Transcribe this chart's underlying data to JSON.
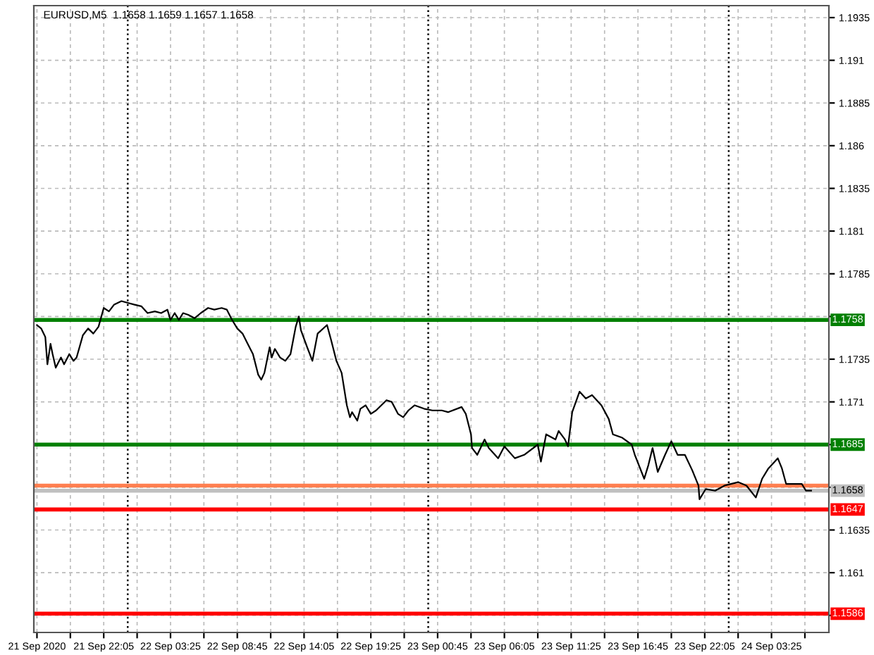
{
  "chart_data": {
    "type": "line",
    "title": "EURUSD,M5  1.1658 1.1659 1.1657 1.1658",
    "x": [
      "2020-09-21T16:45",
      "2020-09-21T17:05",
      "2020-09-21T17:25",
      "2020-09-21T17:35",
      "2020-09-21T17:50",
      "2020-09-21T18:00",
      "2020-09-21T18:15",
      "2020-09-21T18:40",
      "2020-09-21T18:55",
      "2020-09-21T19:20",
      "2020-09-21T19:40",
      "2020-09-21T19:55",
      "2020-09-21T20:25",
      "2020-09-21T20:50",
      "2020-09-21T21:15",
      "2020-09-21T21:40",
      "2020-09-21T22:05",
      "2020-09-21T22:30",
      "2020-09-21T22:55",
      "2020-09-21T23:30",
      "2020-09-22T00:00",
      "2020-09-22T00:30",
      "2020-09-22T01:05",
      "2020-09-22T01:35",
      "2020-09-22T02:10",
      "2020-09-22T02:40",
      "2020-09-22T03:10",
      "2020-09-22T03:25",
      "2020-09-22T03:45",
      "2020-09-22T04:05",
      "2020-09-22T04:25",
      "2020-09-22T04:50",
      "2020-09-22T05:20",
      "2020-09-22T05:50",
      "2020-09-22T06:25",
      "2020-09-22T06:55",
      "2020-09-22T07:30",
      "2020-09-22T07:55",
      "2020-09-22T08:20",
      "2020-09-22T08:45",
      "2020-09-22T09:10",
      "2020-09-22T09:35",
      "2020-09-22T10:00",
      "2020-09-22T10:25",
      "2020-09-22T10:40",
      "2020-09-22T10:55",
      "2020-09-22T11:20",
      "2020-09-22T11:30",
      "2020-09-22T11:45",
      "2020-09-22T12:10",
      "2020-09-22T12:35",
      "2020-09-22T13:00",
      "2020-09-22T13:25",
      "2020-09-22T13:40",
      "2020-09-22T13:50",
      "2020-09-22T14:20",
      "2020-09-22T14:45",
      "2020-09-22T15:10",
      "2020-09-22T15:55",
      "2020-09-22T16:15",
      "2020-09-22T16:40",
      "2020-09-22T17:05",
      "2020-09-22T17:30",
      "2020-09-22T17:45",
      "2020-09-22T17:55",
      "2020-09-22T18:20",
      "2020-09-22T18:35",
      "2020-09-22T19:00",
      "2020-09-22T19:25",
      "2020-09-22T19:50",
      "2020-09-22T20:15",
      "2020-09-22T20:40",
      "2020-09-22T21:05",
      "2020-09-22T21:35",
      "2020-09-22T22:00",
      "2020-09-22T22:25",
      "2020-09-22T22:55",
      "2020-09-22T23:40",
      "2020-09-23T00:20",
      "2020-09-23T01:05",
      "2020-09-23T01:35",
      "2020-09-23T02:40",
      "2020-09-23T03:00",
      "2020-09-23T03:25",
      "2020-09-23T03:30",
      "2020-09-23T03:55",
      "2020-09-23T04:30",
      "2020-09-23T04:50",
      "2020-09-23T05:35",
      "2020-09-23T06:05",
      "2020-09-23T06:55",
      "2020-09-23T07:40",
      "2020-09-23T08:45",
      "2020-09-23T09:00",
      "2020-09-23T09:25",
      "2020-09-23T10:10",
      "2020-09-23T10:25",
      "2020-09-23T10:55",
      "2020-09-23T11:10",
      "2020-09-23T11:30",
      "2020-09-23T12:05",
      "2020-09-23T12:35",
      "2020-09-23T13:05",
      "2020-09-23T13:50",
      "2020-09-23T14:25",
      "2020-09-23T14:45",
      "2020-09-23T15:30",
      "2020-09-23T16:15",
      "2020-09-23T16:30",
      "2020-09-23T17:15",
      "2020-09-23T17:35",
      "2020-09-23T17:55",
      "2020-09-23T18:20",
      "2020-09-23T18:55",
      "2020-09-23T19:25",
      "2020-09-23T19:55",
      "2020-09-23T20:30",
      "2020-09-23T21:05",
      "2020-09-23T21:35",
      "2020-09-23T21:40",
      "2020-09-23T22:10",
      "2020-09-23T22:55",
      "2020-09-23T23:40",
      "2020-09-24T00:45",
      "2020-09-24T01:25",
      "2020-09-24T02:10",
      "2020-09-24T02:40",
      "2020-09-24T03:10",
      "2020-09-24T03:55",
      "2020-09-24T04:15",
      "2020-09-24T04:35",
      "2020-09-24T05:20",
      "2020-09-24T05:50",
      "2020-09-24T06:10",
      "2020-09-24T06:35"
    ],
    "series": [
      {
        "color": "#000000",
        "values": [
          1.1755,
          1.1753,
          1.1748,
          1.1732,
          1.1744,
          1.1738,
          1.173,
          1.1736,
          1.1732,
          1.1738,
          1.1734,
          1.1736,
          1.1749,
          1.1753,
          1.175,
          1.1754,
          1.1765,
          1.1763,
          1.1767,
          1.1769,
          1.1768,
          1.1767,
          1.1766,
          1.1762,
          1.1763,
          1.1762,
          1.1764,
          1.1758,
          1.1762,
          1.1758,
          1.1762,
          1.1761,
          1.1759,
          1.1762,
          1.1765,
          1.1764,
          1.1765,
          1.1764,
          1.1758,
          1.1753,
          1.175,
          1.1744,
          1.1738,
          1.1726,
          1.1723,
          1.1727,
          1.1742,
          1.1736,
          1.1741,
          1.1736,
          1.1734,
          1.1738,
          1.1754,
          1.176,
          1.1752,
          1.1742,
          1.1734,
          1.175,
          1.1755,
          1.1746,
          1.1734,
          1.1727,
          1.1708,
          1.1701,
          1.1704,
          1.1699,
          1.1706,
          1.1708,
          1.1703,
          1.1705,
          1.1708,
          1.1711,
          1.171,
          1.1703,
          1.1701,
          1.1705,
          1.1708,
          1.1706,
          1.1705,
          1.1705,
          1.1704,
          1.1707,
          1.1703,
          1.1691,
          1.1683,
          1.1679,
          1.1688,
          1.1683,
          1.1677,
          1.1684,
          1.1677,
          1.1679,
          1.1685,
          1.1675,
          1.1691,
          1.1688,
          1.1693,
          1.1688,
          1.1684,
          1.1704,
          1.1716,
          1.1712,
          1.1714,
          1.1708,
          1.17,
          1.1691,
          1.1689,
          1.1685,
          1.1679,
          1.1665,
          1.1673,
          1.1683,
          1.1669,
          1.1679,
          1.1687,
          1.1679,
          1.1679,
          1.167,
          1.1661,
          1.1653,
          1.1659,
          1.1658,
          1.1661,
          1.1663,
          1.1661,
          1.1654,
          1.1665,
          1.1671,
          1.1677,
          1.1671,
          1.1662,
          1.1662,
          1.1662,
          1.1658,
          1.1658
        ]
      }
    ],
    "xlim": [
      "2020-09-21T16:30",
      "2020-09-24T08:00"
    ],
    "xticks": [
      {
        "value": "2020-09-21T16:45",
        "label": "21 Sep 2020"
      },
      {
        "value": "2020-09-21T19:25",
        "label": null
      },
      {
        "value": "2020-09-21T22:05",
        "label": "21 Sep 22:05"
      },
      {
        "value": "2020-09-22T00:45",
        "label": null
      },
      {
        "value": "2020-09-22T03:25",
        "label": "22 Sep 03:25"
      },
      {
        "value": "2020-09-22T06:05",
        "label": null
      },
      {
        "value": "2020-09-22T08:45",
        "label": "22 Sep 08:45"
      },
      {
        "value": "2020-09-22T11:25",
        "label": null
      },
      {
        "value": "2020-09-22T14:05",
        "label": "22 Sep 14:05"
      },
      {
        "value": "2020-09-22T16:45",
        "label": null
      },
      {
        "value": "2020-09-22T19:25",
        "label": "22 Sep 19:25"
      },
      {
        "value": "2020-09-22T22:05",
        "label": null
      },
      {
        "value": "2020-09-23T00:45",
        "label": "23 Sep 00:45"
      },
      {
        "value": "2020-09-23T03:25",
        "label": null
      },
      {
        "value": "2020-09-23T06:05",
        "label": "23 Sep 06:05"
      },
      {
        "value": "2020-09-23T08:45",
        "label": null
      },
      {
        "value": "2020-09-23T11:25",
        "label": "23 Sep 11:25"
      },
      {
        "value": "2020-09-23T14:05",
        "label": null
      },
      {
        "value": "2020-09-23T16:45",
        "label": "23 Sep 16:45"
      },
      {
        "value": "2020-09-23T19:25",
        "label": null
      },
      {
        "value": "2020-09-23T22:05",
        "label": "23 Sep 22:05"
      },
      {
        "value": "2020-09-24T00:45",
        "label": null
      },
      {
        "value": "2020-09-24T03:25",
        "label": "24 Sep 03:25"
      },
      {
        "value": "2020-09-24T06:05",
        "label": null
      }
    ],
    "ylim": [
      1.1575,
      1.1942
    ],
    "yticks": [
      1.1935,
      1.191,
      1.1885,
      1.186,
      1.1835,
      1.181,
      1.1785,
      {
        "value": 1.176,
        "label": null
      },
      1.1735,
      1.171,
      {
        "value": 1.1685,
        "label": null
      },
      {
        "value": 1.166,
        "label": null
      },
      1.1635,
      1.161,
      {
        "value": 1.1585,
        "label": null
      }
    ],
    "grid": true,
    "marker": "none",
    "line_style": "solid",
    "ref_lines": [
      {
        "axis": "x",
        "value": "2020-09-22T00:00",
        "color": "#000000",
        "line_style": "dotted"
      },
      {
        "axis": "x",
        "value": "2020-09-23T00:00",
        "color": "#000000",
        "line_style": "dotted"
      },
      {
        "axis": "x",
        "value": "2020-09-24T00:00",
        "color": "#000000",
        "line_style": "dotted"
      },
      {
        "axis": "y",
        "value": 1.1758,
        "label": "1.1758",
        "color": "#008000",
        "line_style": "solid"
      },
      {
        "axis": "y",
        "value": 1.1685,
        "label": "1.1685",
        "color": "#008000",
        "line_style": "solid"
      },
      {
        "axis": "y",
        "value": 1.1661,
        "color": "#ff7f50",
        "line_style": "solid"
      },
      {
        "axis": "y",
        "value": 1.1658,
        "label": "1.1658",
        "color": "#c0c0c0",
        "line_style": "solid"
      },
      {
        "axis": "y",
        "value": 1.1647,
        "label": "1.1647",
        "color": "#ff0000",
        "line_style": "solid"
      },
      {
        "axis": "y",
        "value": 1.1586,
        "label": "1.1586",
        "color": "#ff0000",
        "line_style": "solid"
      }
    ]
  }
}
